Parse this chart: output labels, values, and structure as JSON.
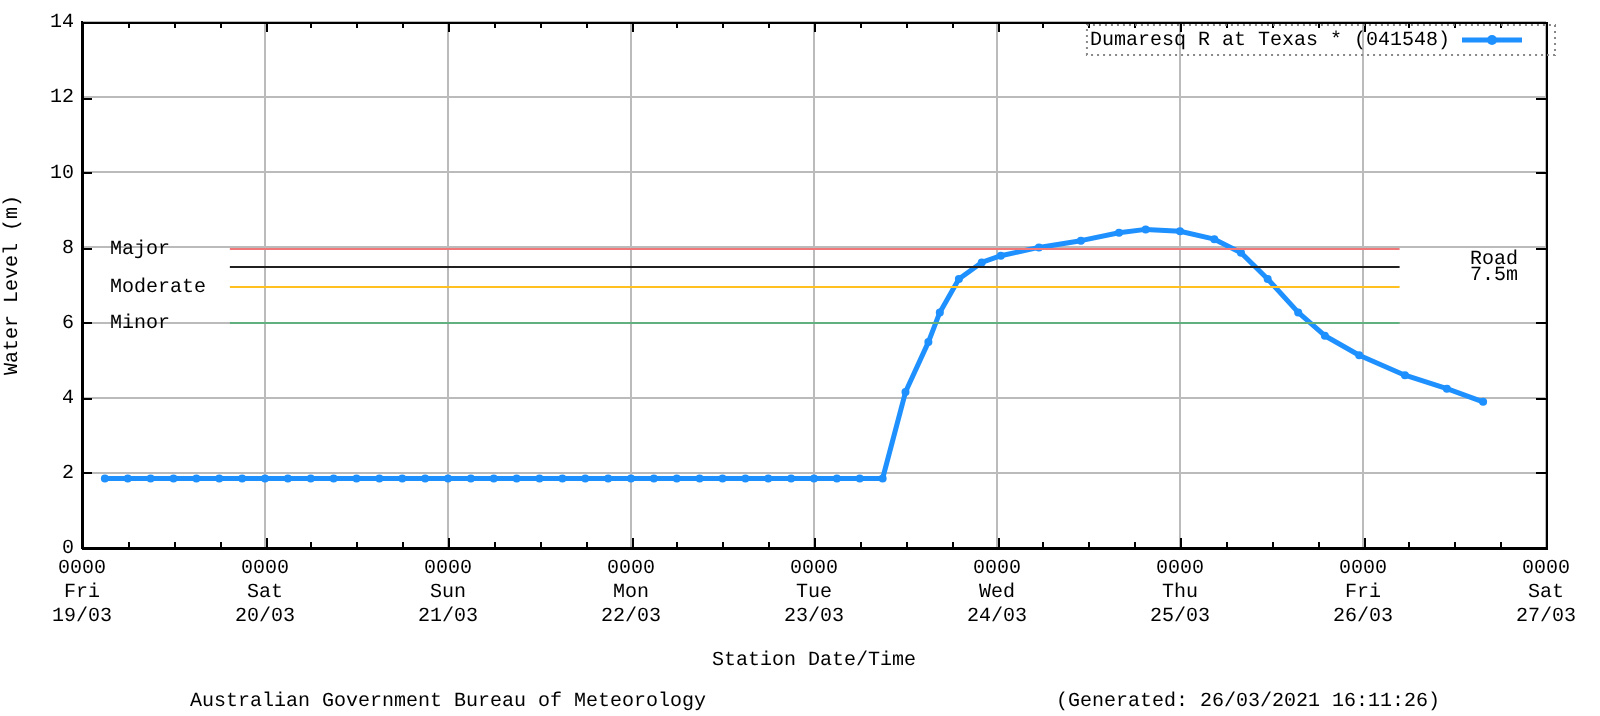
{
  "chart_data": {
    "type": "line",
    "xlabel": "Station Date/Time",
    "ylabel": "Water Level (m)",
    "ylim": [
      0,
      14
    ],
    "yticks": [
      0,
      2,
      4,
      6,
      8,
      10,
      12,
      14
    ],
    "xlim": [
      "2021-03-19T00:00",
      "2021-03-27T00:00"
    ],
    "xticks": [
      {
        "value": "2021-03-19T00:00",
        "label": "0000\nFri\n19/03"
      },
      {
        "value": "2021-03-19T06:00",
        "label": null
      },
      {
        "value": "2021-03-19T12:00",
        "label": null
      },
      {
        "value": "2021-03-19T18:00",
        "label": null
      },
      {
        "value": "2021-03-20T00:00",
        "label": "0000\nSat\n20/03"
      },
      {
        "value": "2021-03-20T06:00",
        "label": null
      },
      {
        "value": "2021-03-20T12:00",
        "label": null
      },
      {
        "value": "2021-03-20T18:00",
        "label": null
      },
      {
        "value": "2021-03-21T00:00",
        "label": "0000\nSun\n21/03"
      },
      {
        "value": "2021-03-21T06:00",
        "label": null
      },
      {
        "value": "2021-03-21T12:00",
        "label": null
      },
      {
        "value": "2021-03-21T18:00",
        "label": null
      },
      {
        "value": "2021-03-22T00:00",
        "label": "0000\nMon\n22/03"
      },
      {
        "value": "2021-03-22T06:00",
        "label": null
      },
      {
        "value": "2021-03-22T12:00",
        "label": null
      },
      {
        "value": "2021-03-22T18:00",
        "label": null
      },
      {
        "value": "2021-03-23T00:00",
        "label": "0000\nTue\n23/03"
      },
      {
        "value": "2021-03-23T06:00",
        "label": null
      },
      {
        "value": "2021-03-23T12:00",
        "label": null
      },
      {
        "value": "2021-03-23T18:00",
        "label": null
      },
      {
        "value": "2021-03-24T00:00",
        "label": "0000\nWed\n24/03"
      },
      {
        "value": "2021-03-24T06:00",
        "label": null
      },
      {
        "value": "2021-03-24T12:00",
        "label": null
      },
      {
        "value": "2021-03-24T18:00",
        "label": null
      },
      {
        "value": "2021-03-25T00:00",
        "label": "0000\nThu\n25/03"
      },
      {
        "value": "2021-03-25T06:00",
        "label": null
      },
      {
        "value": "2021-03-25T12:00",
        "label": null
      },
      {
        "value": "2021-03-25T18:00",
        "label": null
      },
      {
        "value": "2021-03-26T00:00",
        "label": "0000\nFri\n26/03"
      },
      {
        "value": "2021-03-26T06:00",
        "label": null
      },
      {
        "value": "2021-03-26T12:00",
        "label": null
      },
      {
        "value": "2021-03-26T18:00",
        "label": null
      },
      {
        "value": "2021-03-27T00:00",
        "label": "0000\nSat\n27/03"
      }
    ],
    "grid": true,
    "legend": "top right",
    "marker": "circle",
    "line_style": "solid",
    "ref_lines": [
      {
        "axis": "y",
        "value": 8,
        "label": "Major",
        "color": "#f07878"
      },
      {
        "axis": "y",
        "value": 7.5,
        "label": "Road\n7.5m",
        "color": "#202020"
      },
      {
        "axis": "y",
        "value": 7,
        "label": "Moderate",
        "color": "#ffc020"
      },
      {
        "axis": "y",
        "value": 6,
        "label": "Minor",
        "color": "#60b080"
      }
    ],
    "series": [
      {
        "name": "Dumaresq R at Texas * (041548)",
        "color": "#1e90ff",
        "x": [
          "2021-03-19T03:00",
          "2021-03-19T06:00",
          "2021-03-19T09:00",
          "2021-03-19T12:00",
          "2021-03-19T15:00",
          "2021-03-19T18:00",
          "2021-03-19T21:00",
          "2021-03-20T00:00",
          "2021-03-20T03:00",
          "2021-03-20T06:00",
          "2021-03-20T09:00",
          "2021-03-20T12:00",
          "2021-03-20T15:00",
          "2021-03-20T18:00",
          "2021-03-20T21:00",
          "2021-03-21T00:00",
          "2021-03-21T03:00",
          "2021-03-21T06:00",
          "2021-03-21T09:00",
          "2021-03-21T12:00",
          "2021-03-21T15:00",
          "2021-03-21T18:00",
          "2021-03-21T21:00",
          "2021-03-22T00:00",
          "2021-03-22T03:00",
          "2021-03-22T06:00",
          "2021-03-22T09:00",
          "2021-03-22T12:00",
          "2021-03-22T15:00",
          "2021-03-22T18:00",
          "2021-03-22T21:00",
          "2021-03-23T00:00",
          "2021-03-23T03:00",
          "2021-03-23T06:00",
          "2021-03-23T09:00",
          "2021-03-23T12:00",
          "2021-03-23T15:00",
          "2021-03-23T16:30",
          "2021-03-23T19:00",
          "2021-03-23T22:00",
          "2021-03-24T00:30",
          "2021-03-24T05:30",
          "2021-03-24T11:00",
          "2021-03-24T16:00",
          "2021-03-24T19:30",
          "2021-03-25T00:00",
          "2021-03-25T04:30",
          "2021-03-25T08:00",
          "2021-03-25T11:30",
          "2021-03-25T15:30",
          "2021-03-25T19:00",
          "2021-03-25T23:30",
          "2021-03-26T05:30",
          "2021-03-26T11:00",
          "2021-03-26T15:45"
        ],
        "values": [
          1.85,
          1.85,
          1.85,
          1.85,
          1.85,
          1.85,
          1.85,
          1.85,
          1.85,
          1.85,
          1.85,
          1.85,
          1.85,
          1.85,
          1.85,
          1.85,
          1.85,
          1.85,
          1.85,
          1.85,
          1.85,
          1.85,
          1.85,
          1.85,
          1.85,
          1.85,
          1.85,
          1.85,
          1.85,
          1.85,
          1.85,
          1.85,
          1.85,
          1.85,
          1.85,
          4.15,
          5.48,
          6.27,
          7.16,
          7.6,
          7.78,
          8.0,
          8.18,
          8.39,
          8.48,
          8.43,
          8.22,
          7.86,
          7.16,
          6.27,
          5.65,
          5.13,
          4.6,
          4.24,
          3.89
        ]
      }
    ],
    "annotations": [
      "Australian Government Bureau of Meteorology",
      "(Generated: 26/03/2021 16:11:26)"
    ]
  }
}
